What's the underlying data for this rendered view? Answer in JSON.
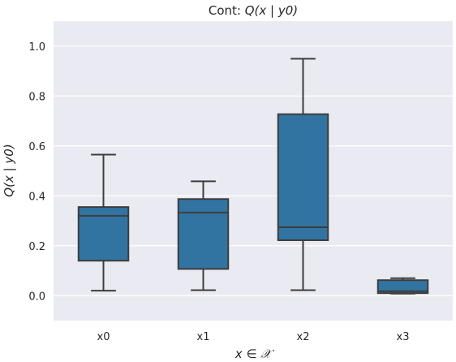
{
  "chart_data": {
    "type": "box",
    "title_prefix": "Cont: ",
    "title_math": "Q(x | y0)",
    "xlabel": "x ∈ 𝒳",
    "ylabel": "Q(x | y0)",
    "categories": [
      "x0",
      "x1",
      "x2",
      "x3"
    ],
    "ylim": [
      -0.1,
      1.1
    ],
    "yticks": [
      0.0,
      0.2,
      0.4,
      0.6,
      0.8,
      1.0
    ],
    "ytick_labels": [
      "0.0",
      "0.2",
      "0.4",
      "0.6",
      "0.8",
      "1.0"
    ],
    "grid": true,
    "legend": "none",
    "boxes": [
      {
        "category": "x0",
        "whisker_low": 0.02,
        "q1": 0.14,
        "median": 0.32,
        "q3": 0.355,
        "whisker_high": 0.565
      },
      {
        "category": "x1",
        "whisker_low": 0.022,
        "q1": 0.107,
        "median": 0.333,
        "q3": 0.387,
        "whisker_high": 0.458
      },
      {
        "category": "x2",
        "whisker_low": 0.022,
        "q1": 0.222,
        "median": 0.274,
        "q3": 0.727,
        "whisker_high": 0.949
      },
      {
        "category": "x3",
        "whisker_low": 0.008,
        "q1": 0.01,
        "median": 0.018,
        "q3": 0.062,
        "whisker_high": 0.07
      }
    ],
    "colors": {
      "box_fill": "#3274a1",
      "box_edge": "#3d3d3d",
      "plot_bg": "#eaeaf2",
      "grid": "#ffffff",
      "text": "#262626"
    }
  }
}
